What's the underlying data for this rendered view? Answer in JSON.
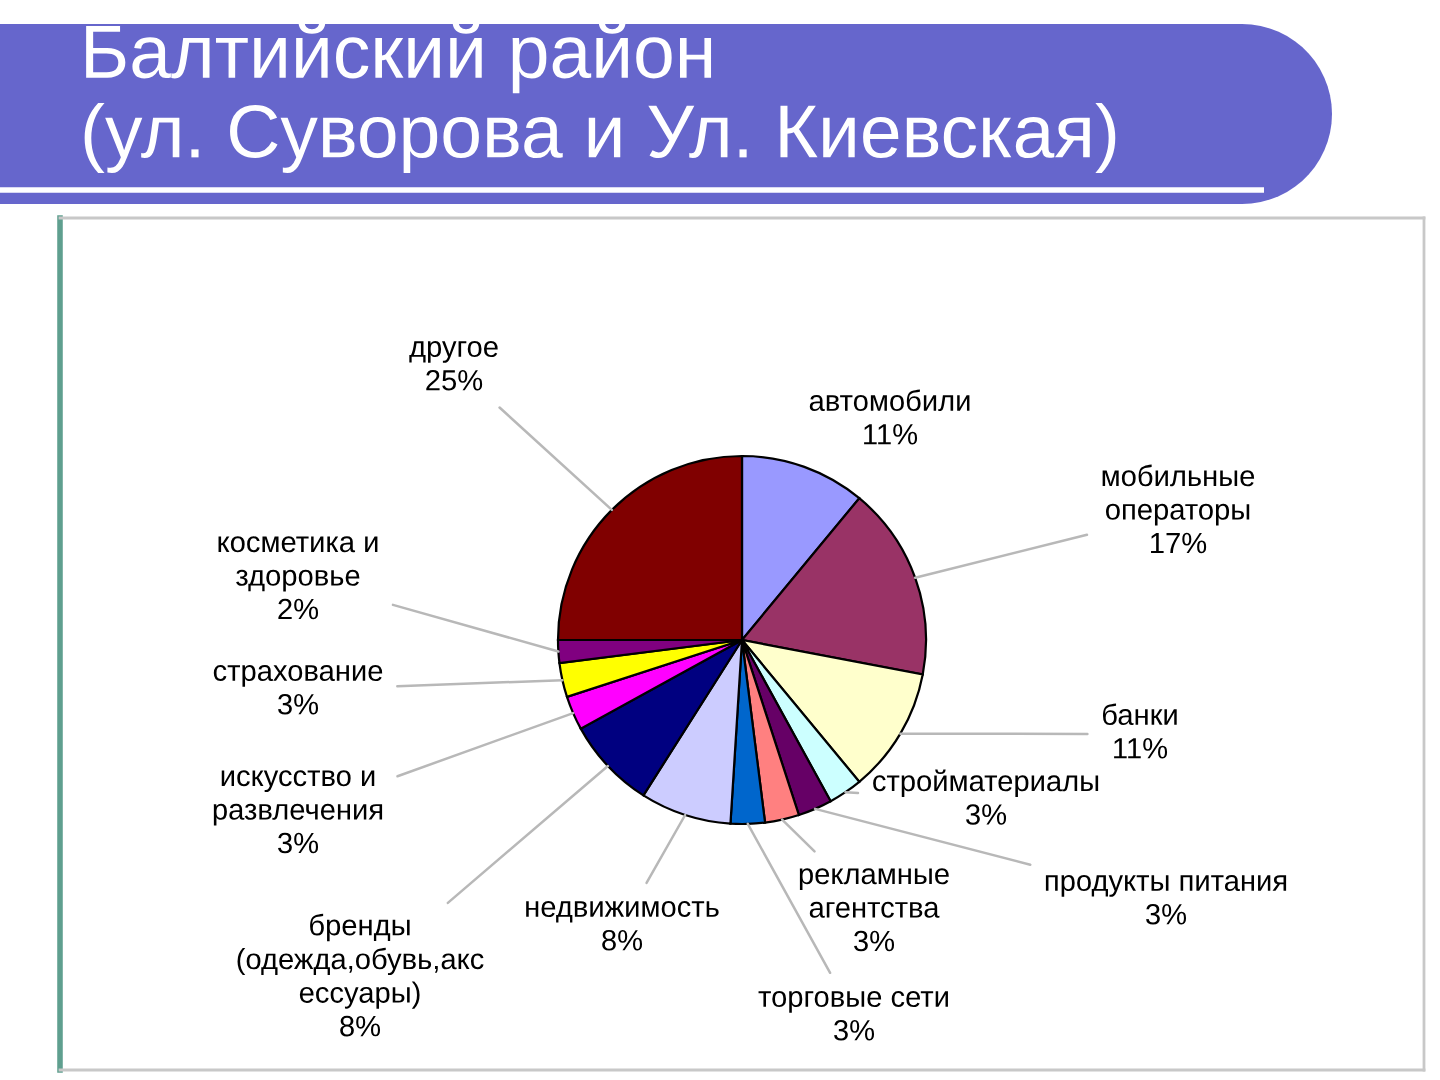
{
  "chart_data": {
    "type": "pie",
    "title": "Балтийский район\n(ул. Суворова и Ул. Киевская)",
    "categories": [
      "автомобили",
      "мобильные\nоператоры",
      "банки",
      "стройматериалы",
      "продукты питания",
      "рекламные\nагентства",
      "торговые сети",
      "недвижимость",
      "бренды\n(одежда,обувь,акс\nессуары)",
      "искусство и\nразвлечения",
      "страхование",
      "косметика и\nздоровье",
      "другое"
    ],
    "values": [
      11,
      17,
      11,
      3,
      3,
      3,
      3,
      8,
      8,
      3,
      3,
      2,
      25
    ],
    "value_labels": [
      "11%",
      "17%",
      "11%",
      "3%",
      "3%",
      "3%",
      "3%",
      "8%",
      "8%",
      "3%",
      "3%",
      "2%",
      "25%"
    ],
    "colors": [
      "#9999ff",
      "#993366",
      "#ffffcc",
      "#ccffff",
      "#660066",
      "#ff8080",
      "#0066cc",
      "#ccccff",
      "#000080",
      "#ff00ff",
      "#ffff00",
      "#800080",
      "#800000"
    ]
  }
}
